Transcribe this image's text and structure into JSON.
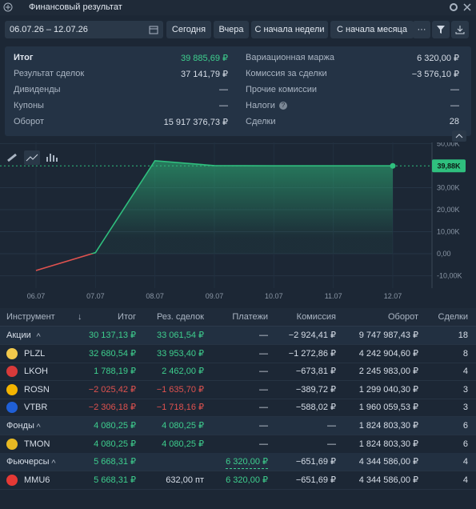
{
  "header": {
    "title": "Финансовый результат"
  },
  "toolbar": {
    "date_range": "06.07.26 – 12.07.26",
    "buttons": [
      "Сегодня",
      "Вчера",
      "С начала недели",
      "С начала месяца"
    ],
    "more": "···"
  },
  "summary": {
    "left": [
      {
        "label": "Итог",
        "value": "39 885,69 ₽"
      },
      {
        "label": "Результат сделок",
        "value": "37 141,79 ₽"
      },
      {
        "label": "Дивиденды",
        "value": "—"
      },
      {
        "label": "Купоны",
        "value": "—"
      },
      {
        "label": "Оборот",
        "value": "15 917 376,73 ₽"
      }
    ],
    "right": [
      {
        "label": "Вариационная маржа",
        "value": "6 320,00 ₽"
      },
      {
        "label": "Комиссия за сделки",
        "value": "−3 576,10 ₽"
      },
      {
        "label": "Прочие комиссии",
        "value": "—"
      },
      {
        "label": "Налоги",
        "value": "—"
      },
      {
        "label": "Сделки",
        "value": "28"
      }
    ]
  },
  "chart_data": {
    "type": "line",
    "categories": [
      "06.07",
      "07.07",
      "08.07",
      "09.07",
      "10.07",
      "11.07",
      "12.07"
    ],
    "series": [
      {
        "name": "Итог",
        "color": "#2fbf7e",
        "negative_color": "#e0524f",
        "values": [
          -7600,
          500,
          42200,
          40000,
          39900,
          39900,
          39885.69
        ]
      }
    ],
    "last_label": "39,88K",
    "ylim": [
      -15600,
      50500
    ],
    "yticks": [
      {
        "value": -10000,
        "label": "-10,00K"
      },
      {
        "value": 0,
        "label": "0,00"
      },
      {
        "value": 10000,
        "label": "10,00K"
      },
      {
        "value": 20000,
        "label": "20,00K"
      },
      {
        "value": 30000,
        "label": "30,00K"
      },
      {
        "value": 50000,
        "label": "50,00K"
      }
    ],
    "grid": true
  },
  "table": {
    "columns": [
      "Инструмент",
      "↓",
      "Итог",
      "Рез. сделок",
      "Платежи",
      "Комиссия",
      "Оборот",
      "Сделки"
    ],
    "groups": [
      {
        "name": "Акции",
        "total": "30 137,13 ₽",
        "result": "33 061,54 ₽",
        "payments": "—",
        "commission": "−2 924,41 ₽",
        "turnover": "9 747 987,43 ₽",
        "deals": "18",
        "items": [
          {
            "name": "PLZL",
            "icon_color": "#f2c94c",
            "total": "32 680,54 ₽",
            "result": "33 953,40 ₽",
            "payments": "—",
            "commission": "−1 272,86 ₽",
            "turnover": "4 242 904,60 ₽",
            "deals": "8"
          },
          {
            "name": "LKOH",
            "icon_color": "#d83a3a",
            "total": "1 788,19 ₽",
            "result": "2 462,00 ₽",
            "payments": "—",
            "commission": "−673,81 ₽",
            "turnover": "2 245 983,00 ₽",
            "deals": "4"
          },
          {
            "name": "ROSN",
            "icon_color": "#f4b400",
            "total": "−2 025,42 ₽",
            "result": "−1 635,70 ₽",
            "payments": "—",
            "commission": "−389,72 ₽",
            "turnover": "1 299 040,30 ₽",
            "deals": "3"
          },
          {
            "name": "VTBR",
            "icon_color": "#1f5fd6",
            "total": "−2 306,18 ₽",
            "result": "−1 718,16 ₽",
            "payments": "—",
            "commission": "−588,02 ₽",
            "turnover": "1 960 059,53 ₽",
            "deals": "3"
          }
        ]
      },
      {
        "name": "Фонды",
        "total": "4 080,25 ₽",
        "result": "4 080,25 ₽",
        "payments": "—",
        "commission": "—",
        "turnover": "1 824 803,30 ₽",
        "deals": "6",
        "items": [
          {
            "name": "TMON",
            "icon_color": "#e8b923",
            "total": "4 080,25 ₽",
            "result": "4 080,25 ₽",
            "payments": "—",
            "commission": "—",
            "turnover": "1 824 803,30 ₽",
            "deals": "6"
          }
        ]
      },
      {
        "name": "Фьючерсы",
        "total": "5 668,31 ₽",
        "payments": "6 320,00 ₽",
        "commission": "−651,69 ₽",
        "turnover": "4 344 586,00 ₽",
        "deals": "4",
        "items": [
          {
            "name": "MMU6",
            "icon_color": "#e53935",
            "total": "5 668,31 ₽",
            "result": "632,00 пт",
            "payments": "6 320,00 ₽",
            "commission": "−651,69 ₽",
            "turnover": "4 344 586,00 ₽",
            "deals": "4"
          }
        ]
      }
    ]
  }
}
